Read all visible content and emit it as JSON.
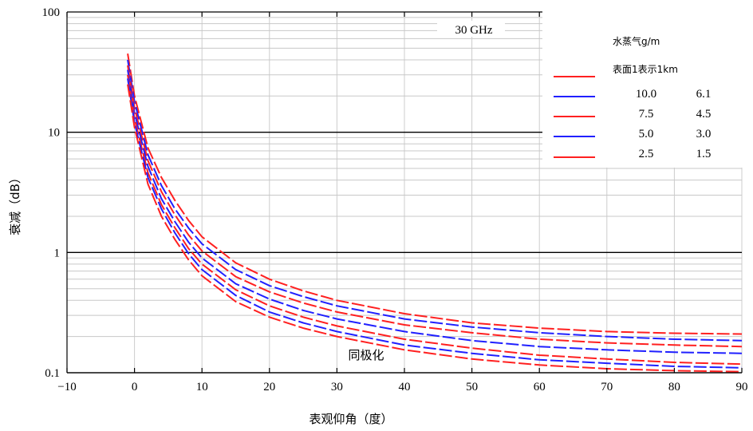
{
  "chart_data": {
    "type": "line",
    "title": "30 GHz",
    "xlabel": "表观仰角（度）",
    "ylabel": "衰减（dB）",
    "annotation": "同极化",
    "xlim": [
      -10,
      90
    ],
    "ylim": [
      0.1,
      100
    ],
    "yscale": "log",
    "grid": true,
    "x_ticks": [
      "−10",
      "0",
      "10",
      "20",
      "30",
      "40",
      "50",
      "60",
      "70",
      "80",
      "90"
    ],
    "y_ticks": [
      "0.1",
      "1",
      "10",
      "100"
    ],
    "legend": {
      "position": "top-right",
      "title": "水蒸气g/m",
      "subtitle": "表面1表示1km",
      "rows": [
        {
          "col1": "10.0",
          "col2": "6.1"
        },
        {
          "col1": "7.5",
          "col2": "4.5"
        },
        {
          "col1": "5.0",
          "col2": "3.0"
        },
        {
          "col1": "2.5",
          "col2": "1.5"
        }
      ]
    },
    "colors": {
      "red": "#ff2020",
      "blue": "#2020ff"
    },
    "x": [
      -1,
      0,
      2,
      4,
      6,
      8,
      10,
      15,
      20,
      25,
      30,
      40,
      50,
      60,
      70,
      80,
      90
    ],
    "series": [
      {
        "color": "#ff2020",
        "values": [
          45,
          20,
          7.4,
          4.2,
          2.7,
          1.85,
          1.35,
          0.82,
          0.6,
          0.48,
          0.4,
          0.31,
          0.26,
          0.235,
          0.22,
          0.213,
          0.21
        ]
      },
      {
        "color": "#2020ff",
        "values": [
          40,
          18,
          6.5,
          3.6,
          2.3,
          1.6,
          1.18,
          0.72,
          0.53,
          0.43,
          0.36,
          0.28,
          0.24,
          0.215,
          0.2,
          0.19,
          0.185
        ]
      },
      {
        "color": "#ff2020",
        "values": [
          36,
          16,
          5.8,
          3.2,
          2.05,
          1.4,
          1.03,
          0.63,
          0.47,
          0.38,
          0.32,
          0.25,
          0.215,
          0.19,
          0.177,
          0.17,
          0.165
        ]
      },
      {
        "color": "#2020ff",
        "values": [
          33,
          14.5,
          5.2,
          2.8,
          1.8,
          1.22,
          0.9,
          0.55,
          0.41,
          0.33,
          0.28,
          0.22,
          0.185,
          0.165,
          0.155,
          0.148,
          0.145
        ]
      },
      {
        "color": "#ff2020",
        "values": [
          30,
          13,
          4.6,
          2.5,
          1.6,
          1.08,
          0.8,
          0.49,
          0.36,
          0.29,
          0.245,
          0.19,
          0.16,
          0.14,
          0.13,
          0.122,
          0.118
        ]
      },
      {
        "color": "#2020ff",
        "values": [
          28,
          12,
          4.2,
          2.3,
          1.45,
          0.98,
          0.72,
          0.44,
          0.32,
          0.26,
          0.22,
          0.17,
          0.145,
          0.128,
          0.12,
          0.113,
          0.11
        ]
      },
      {
        "color": "#ff2020",
        "values": [
          25,
          11,
          3.7,
          2.0,
          1.28,
          0.87,
          0.64,
          0.39,
          0.29,
          0.235,
          0.2,
          0.155,
          0.13,
          0.116,
          0.108,
          0.104,
          0.102
        ]
      }
    ]
  }
}
